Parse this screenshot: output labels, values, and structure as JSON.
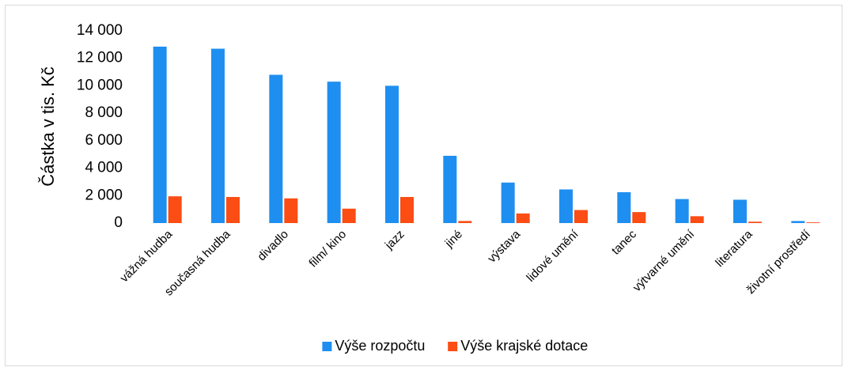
{
  "chart_data": {
    "type": "bar",
    "y_label": "Částka v tis. Kč",
    "categories": [
      "vážná hudba",
      "současná hudba",
      "divadlo",
      "film/ kino",
      "jazz",
      "jiné",
      "výstava",
      "lidové umění",
      "tanec",
      "výtvarné umění",
      "literatura",
      "životní prostředí"
    ],
    "series": [
      {
        "name": "Výše rozpočtu",
        "color": "#1e8ff0",
        "values": [
          12850,
          12700,
          10800,
          10300,
          10000,
          4900,
          2950,
          2450,
          2250,
          1750,
          1700,
          150
        ]
      },
      {
        "name": "Výše krajské dotace",
        "color": "#fb4d14",
        "values": [
          1950,
          1900,
          1800,
          1050,
          1900,
          150,
          700,
          950,
          800,
          500,
          100,
          50
        ]
      }
    ],
    "ylim": [
      0,
      14000
    ],
    "yticks": [
      0,
      {
        "value": 2000,
        "label": "2 000"
      },
      {
        "value": 4000,
        "label": "4 000"
      },
      {
        "value": 6000,
        "label": "6 000"
      },
      {
        "value": 8000,
        "label": "8 000"
      },
      {
        "value": 10000,
        "label": "10 000"
      },
      {
        "value": 12000,
        "label": "12 000"
      },
      {
        "value": 14000,
        "label": "14 000"
      }
    ],
    "legend": "bottom"
  }
}
